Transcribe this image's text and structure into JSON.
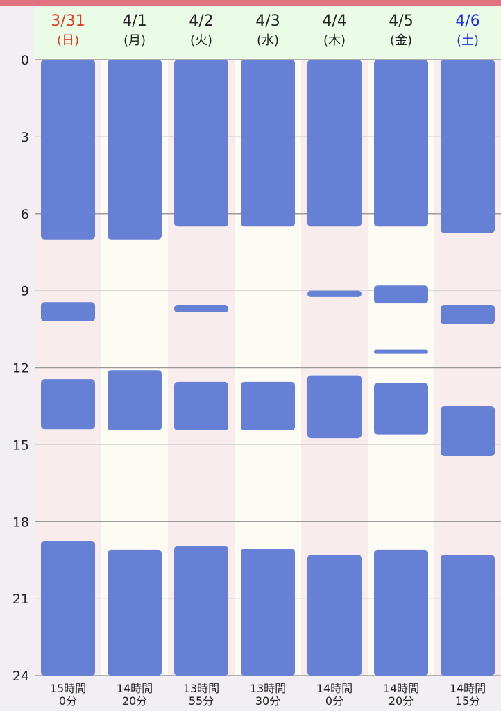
{
  "chart_data": {
    "type": "bar",
    "chart_kind": "sleep-log-range-bars",
    "y_axis": {
      "ylim": [
        0,
        24
      ],
      "ticks": [
        "0",
        "3",
        "6",
        "9",
        "12",
        "15",
        "18",
        "21",
        "24"
      ],
      "tick_values": [
        0,
        3,
        6,
        9,
        12,
        15,
        18,
        21,
        24
      ],
      "major_grid_every": 6,
      "minor_grid_every": 3,
      "direction": "top-to-bottom"
    },
    "bar_color": "#6680d6",
    "grid": true,
    "days": [
      {
        "date": "3/31",
        "dow": "(日)",
        "color": "#e03c2e",
        "column_bg": "#f9ecec",
        "total_hours": "15時間",
        "total_minutes": "0分",
        "segments": [
          [
            0,
            7.0
          ],
          [
            9.45,
            10.2
          ],
          [
            12.45,
            14.4
          ],
          [
            18.75,
            24
          ]
        ]
      },
      {
        "date": "4/1",
        "dow": "(月)",
        "color": "#222222",
        "column_bg": "#fcfcf5",
        "total_hours": "14時間",
        "total_minutes": "20分",
        "segments": [
          [
            0,
            7.0
          ],
          [
            12.1,
            14.45
          ],
          [
            19.1,
            24
          ]
        ]
      },
      {
        "date": "4/2",
        "dow": "(火)",
        "color": "#222222",
        "column_bg": "#f9ecec",
        "total_hours": "13時間",
        "total_minutes": "55分",
        "segments": [
          [
            0,
            6.5
          ],
          [
            9.55,
            9.85
          ],
          [
            12.55,
            14.45
          ],
          [
            18.95,
            24
          ]
        ]
      },
      {
        "date": "4/3",
        "dow": "(水)",
        "color": "#222222",
        "column_bg": "#fcfcf5",
        "total_hours": "13時間",
        "total_minutes": "30分",
        "segments": [
          [
            0,
            6.5
          ],
          [
            12.55,
            14.45
          ],
          [
            19.05,
            24
          ]
        ]
      },
      {
        "date": "4/4",
        "dow": "(木)",
        "color": "#222222",
        "column_bg": "#f9ecec",
        "total_hours": "14時間",
        "total_minutes": "0分",
        "segments": [
          [
            0,
            6.5
          ],
          [
            9.0,
            9.25
          ],
          [
            12.3,
            14.75
          ],
          [
            19.3,
            24
          ]
        ]
      },
      {
        "date": "4/5",
        "dow": "(金)",
        "color": "#222222",
        "column_bg": "#fcfcf5",
        "total_hours": "14時間",
        "total_minutes": "20分",
        "segments": [
          [
            0,
            6.5
          ],
          [
            8.8,
            9.5
          ],
          [
            11.3,
            11.45
          ],
          [
            12.6,
            14.6
          ],
          [
            19.1,
            24
          ]
        ]
      },
      {
        "date": "4/6",
        "dow": "(土)",
        "color": "#1f2ee0",
        "column_bg": "#f9ecec",
        "total_hours": "14時間",
        "total_minutes": "15分",
        "segments": [
          [
            0,
            6.75
          ],
          [
            9.55,
            10.3
          ],
          [
            13.5,
            15.45
          ],
          [
            19.3,
            24
          ]
        ]
      }
    ]
  }
}
